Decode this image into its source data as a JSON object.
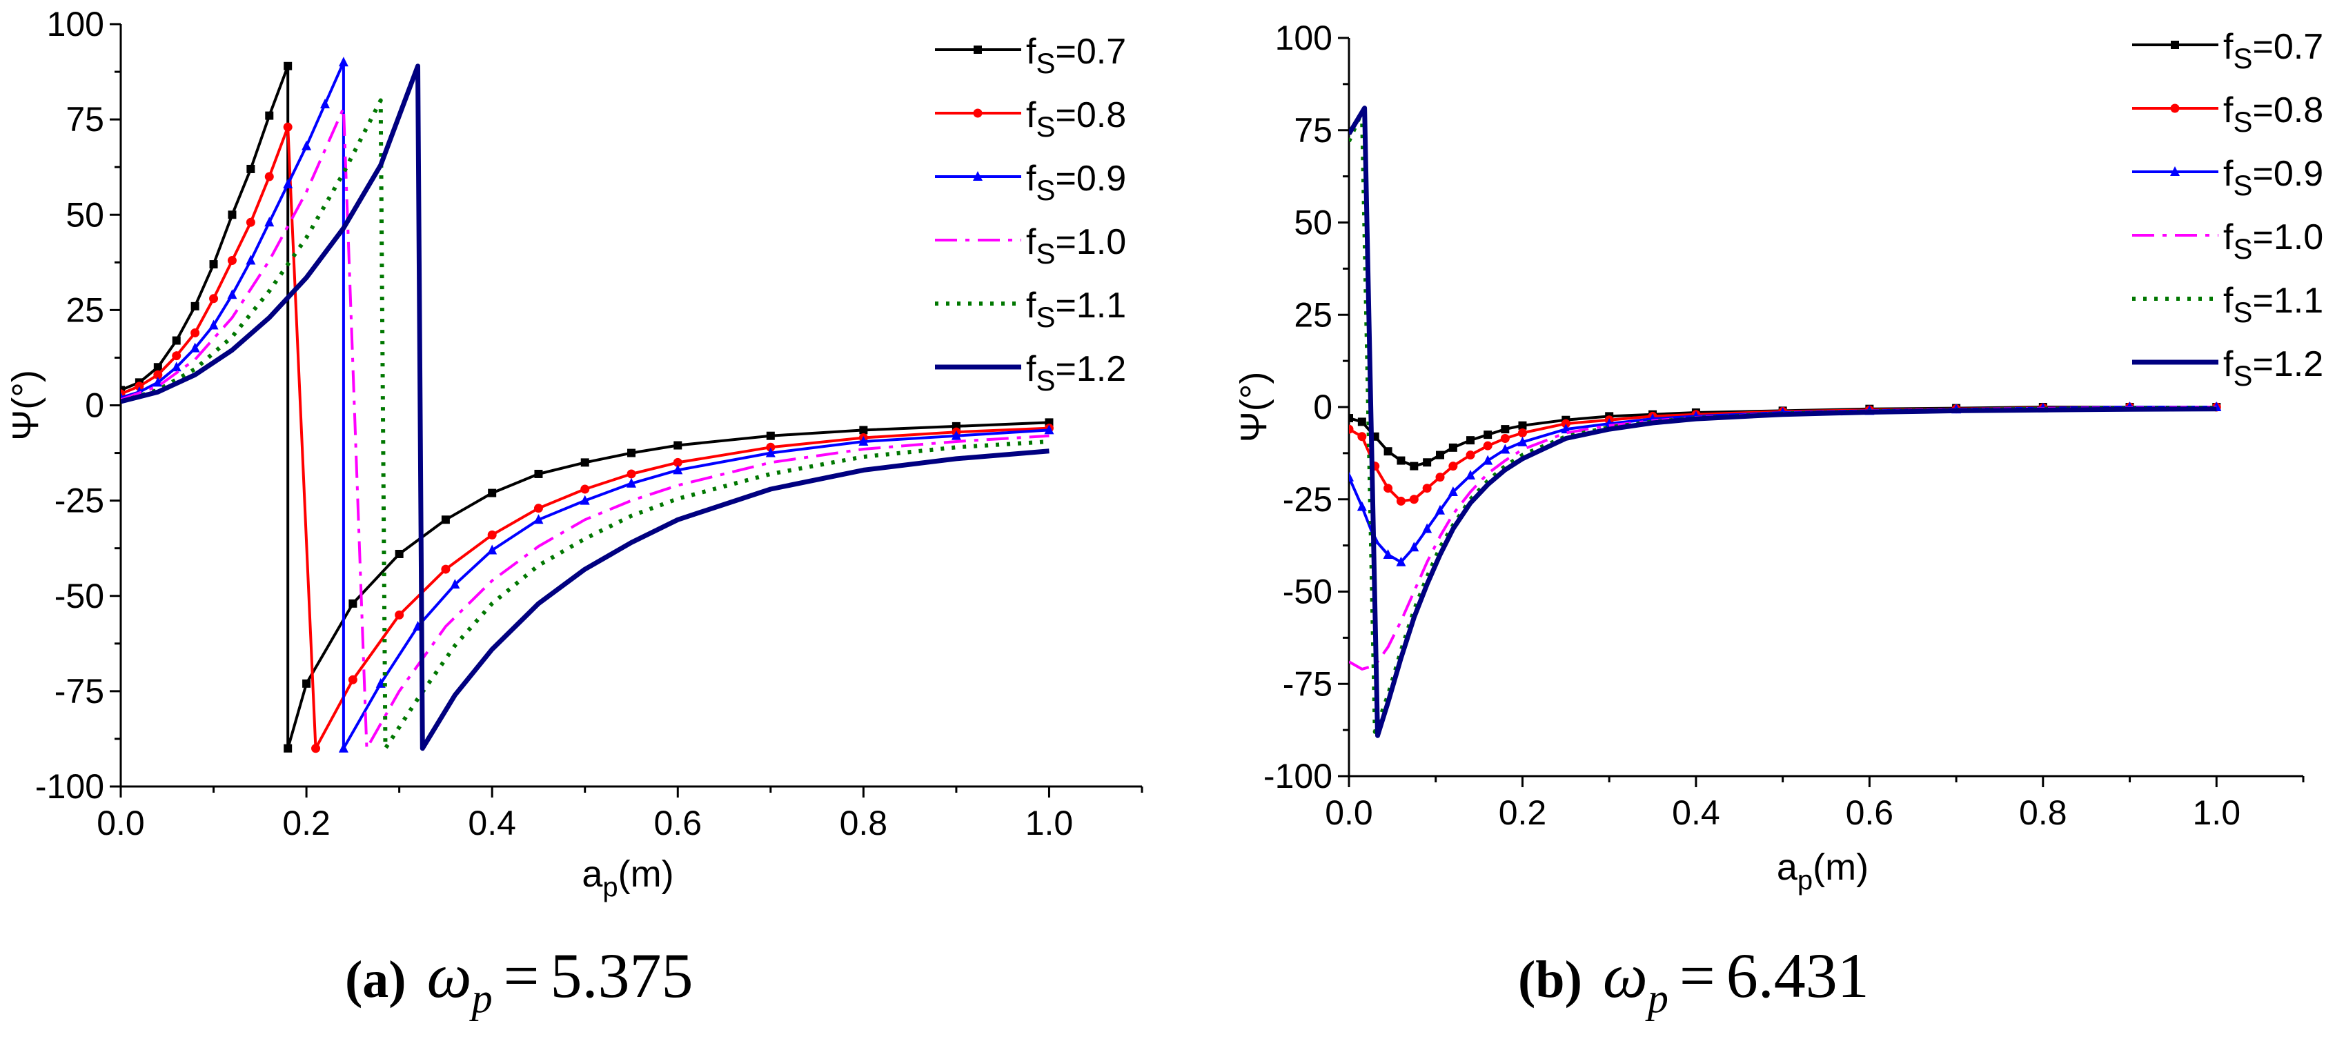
{
  "chart_data": [
    {
      "type": "line",
      "panel_label": "(a)",
      "caption_symbol": "ω",
      "caption_subscript": "p",
      "caption_equals": "=",
      "caption_value": "5.375",
      "xlabel": "a",
      "xlabel_sub": "p",
      "xlabel_unit": "(m)",
      "ylabel": "Ψ(°)",
      "xlim": [
        0,
        1.1
      ],
      "ylim": [
        -100,
        100
      ],
      "xticks": [
        0.0,
        0.2,
        0.4,
        0.6,
        0.8,
        1.0
      ],
      "xtick_labels": [
        "0.0",
        "0.2",
        "0.4",
        "0.6",
        "0.8",
        "1.0"
      ],
      "yticks": [
        -100,
        -75,
        -50,
        -25,
        0,
        25,
        50,
        75,
        100
      ],
      "ytick_labels": [
        "-100",
        "-75",
        "-50",
        "-25",
        "0",
        "25",
        "50",
        "75",
        "100"
      ],
      "legend_position": "top-right",
      "series": [
        {
          "name": "fs=0.7",
          "legend_main": "f",
          "legend_sub": "S",
          "legend_value": "=0.7",
          "color": "#000000",
          "style": "solid",
          "marker": "square",
          "x": [
            0,
            0.02,
            0.04,
            0.06,
            0.08,
            0.1,
            0.12,
            0.14,
            0.16,
            0.18,
            0.18,
            0.2,
            0.25,
            0.3,
            0.35,
            0.4,
            0.45,
            0.5,
            0.55,
            0.6,
            0.7,
            0.8,
            0.9,
            1.0
          ],
          "y": [
            4,
            6,
            10,
            17,
            26,
            37,
            50,
            62,
            76,
            89,
            -90,
            -73,
            -52,
            -39,
            -30,
            -23,
            -18,
            -15,
            -12.5,
            -10.5,
            -8,
            -6.5,
            -5.5,
            -4.5
          ]
        },
        {
          "name": "fs=0.8",
          "legend_main": "f",
          "legend_sub": "S",
          "legend_value": "=0.8",
          "color": "#ff0000",
          "style": "solid",
          "marker": "circle",
          "x": [
            0,
            0.02,
            0.04,
            0.06,
            0.08,
            0.1,
            0.12,
            0.14,
            0.16,
            0.18,
            0.21,
            0.25,
            0.3,
            0.35,
            0.4,
            0.45,
            0.5,
            0.55,
            0.6,
            0.7,
            0.8,
            0.9,
            1.0
          ],
          "y": [
            3,
            5,
            8,
            13,
            19,
            28,
            38,
            48,
            60,
            73,
            -90,
            -72,
            -55,
            -43,
            -34,
            -27,
            -22,
            -18,
            -15,
            -11,
            -8.5,
            -7,
            -6
          ]
        },
        {
          "name": "fs=0.9",
          "legend_main": "f",
          "legend_sub": "S",
          "legend_value": "=0.9",
          "color": "#0000ff",
          "style": "solid",
          "marker": "triangle",
          "x": [
            0,
            0.02,
            0.04,
            0.06,
            0.08,
            0.1,
            0.12,
            0.14,
            0.16,
            0.18,
            0.2,
            0.22,
            0.24,
            0.24,
            0.28,
            0.32,
            0.36,
            0.4,
            0.45,
            0.5,
            0.55,
            0.6,
            0.7,
            0.8,
            0.9,
            1.0
          ],
          "y": [
            2,
            3.5,
            6,
            10,
            15,
            21,
            29,
            38,
            48,
            58,
            68,
            79,
            90,
            -90,
            -73,
            -58,
            -47,
            -38,
            -30,
            -25,
            -20.5,
            -17,
            -12.5,
            -9.5,
            -8,
            -6.5
          ]
        },
        {
          "name": "fs=1.0",
          "legend_main": "f",
          "legend_sub": "S",
          "legend_value": "=1.0",
          "color": "#ff00ff",
          "style": "dashdot",
          "marker": "none",
          "x": [
            0,
            0.04,
            0.08,
            0.12,
            0.16,
            0.2,
            0.24,
            0.265,
            0.3,
            0.35,
            0.4,
            0.45,
            0.5,
            0.55,
            0.6,
            0.7,
            0.8,
            0.9,
            1.0
          ],
          "y": [
            1.5,
            5,
            12,
            23,
            38,
            56,
            78,
            -90,
            -75,
            -58,
            -46,
            -37,
            -30,
            -25,
            -21,
            -15,
            -11.5,
            -9.5,
            -8
          ]
        },
        {
          "name": "fs=1.1",
          "legend_main": "f",
          "legend_sub": "S",
          "legend_value": "=1.1",
          "color": "#007700",
          "style": "dotted",
          "marker": "none",
          "x": [
            0,
            0.04,
            0.08,
            0.12,
            0.16,
            0.2,
            0.24,
            0.28,
            0.285,
            0.32,
            0.36,
            0.4,
            0.45,
            0.5,
            0.55,
            0.6,
            0.7,
            0.8,
            0.9,
            1.0
          ],
          "y": [
            1,
            4,
            9.5,
            18,
            30,
            44,
            61,
            80,
            -90,
            -77,
            -63,
            -52,
            -42,
            -35,
            -29,
            -24.5,
            -18,
            -13.5,
            -11,
            -9.5
          ]
        },
        {
          "name": "fs=1.2",
          "legend_main": "f",
          "legend_sub": "S",
          "legend_value": "=1.2",
          "color": "#000080",
          "style": "solid-thick",
          "marker": "none",
          "x": [
            0,
            0.04,
            0.08,
            0.12,
            0.16,
            0.2,
            0.24,
            0.28,
            0.32,
            0.325,
            0.36,
            0.4,
            0.45,
            0.5,
            0.55,
            0.6,
            0.7,
            0.8,
            0.9,
            1.0
          ],
          "y": [
            1,
            3.5,
            8,
            14.5,
            23,
            33.5,
            46.5,
            63,
            89,
            -90,
            -76,
            -64,
            -52,
            -43,
            -36,
            -30,
            -22,
            -17,
            -14,
            -12
          ]
        }
      ]
    },
    {
      "type": "line",
      "panel_label": "(b)",
      "caption_symbol": "ω",
      "caption_subscript": "p",
      "caption_equals": "=",
      "caption_value": "6.431",
      "xlabel": "a",
      "xlabel_sub": "p",
      "xlabel_unit": "(m)",
      "ylabel": "Ψ(°)",
      "xlim": [
        0,
        1.1
      ],
      "ylim": [
        -100,
        100
      ],
      "xticks": [
        0.0,
        0.2,
        0.4,
        0.6,
        0.8,
        1.0
      ],
      "xtick_labels": [
        "0.0",
        "0.2",
        "0.4",
        "0.6",
        "0.8",
        "1.0"
      ],
      "yticks": [
        -100,
        -75,
        -50,
        -25,
        0,
        25,
        50,
        75,
        100
      ],
      "ytick_labels": [
        "-100",
        "-75",
        "-50",
        "-25",
        "0",
        "25",
        "50",
        "75",
        "100"
      ],
      "legend_position": "top-right",
      "series": [
        {
          "name": "fs=0.7",
          "legend_main": "f",
          "legend_sub": "S",
          "legend_value": "=0.7",
          "color": "#000000",
          "style": "solid",
          "marker": "square",
          "x": [
            0,
            0.015,
            0.03,
            0.045,
            0.06,
            0.075,
            0.09,
            0.105,
            0.12,
            0.14,
            0.16,
            0.18,
            0.2,
            0.25,
            0.3,
            0.35,
            0.4,
            0.5,
            0.6,
            0.7,
            0.8,
            0.9,
            1.0
          ],
          "y": [
            -3,
            -4,
            -8,
            -12,
            -14.5,
            -16,
            -15,
            -13,
            -11,
            -9,
            -7.5,
            -6,
            -5,
            -3.5,
            -2.5,
            -2,
            -1.5,
            -1,
            -0.5,
            -0.3,
            0,
            0,
            0
          ]
        },
        {
          "name": "fs=0.8",
          "legend_main": "f",
          "legend_sub": "S",
          "legend_value": "=0.8",
          "color": "#ff0000",
          "style": "solid",
          "marker": "circle",
          "x": [
            0,
            0.015,
            0.03,
            0.045,
            0.06,
            0.075,
            0.09,
            0.105,
            0.12,
            0.14,
            0.16,
            0.18,
            0.2,
            0.25,
            0.3,
            0.35,
            0.4,
            0.5,
            0.6,
            0.7,
            0.8,
            0.9,
            1.0
          ],
          "y": [
            -6,
            -8,
            -16,
            -22,
            -25.5,
            -25,
            -22,
            -19,
            -16,
            -13,
            -10.5,
            -8.5,
            -7,
            -4.5,
            -3.5,
            -2.5,
            -2,
            -1.2,
            -0.8,
            -0.5,
            -0.2,
            0,
            0
          ]
        },
        {
          "name": "fs=0.9",
          "legend_main": "f",
          "legend_sub": "S",
          "legend_value": "=0.9",
          "color": "#0000ff",
          "style": "solid",
          "marker": "triangle",
          "x": [
            0,
            0.015,
            0.03,
            0.045,
            0.06,
            0.075,
            0.09,
            0.105,
            0.12,
            0.14,
            0.16,
            0.18,
            0.2,
            0.25,
            0.3,
            0.35,
            0.4,
            0.5,
            0.6,
            0.7,
            0.8,
            0.9,
            1.0
          ],
          "y": [
            -19,
            -27,
            -36,
            -40,
            -42,
            -38,
            -33,
            -28,
            -23,
            -18.5,
            -14.5,
            -11.5,
            -9.5,
            -6,
            -4.5,
            -3.2,
            -2.5,
            -1.5,
            -1,
            -0.6,
            -0.3,
            0,
            0
          ]
        },
        {
          "name": "fs=1.0",
          "legend_main": "f",
          "legend_sub": "S",
          "legend_value": "=1.0",
          "color": "#ff00ff",
          "style": "dashdot",
          "marker": "none",
          "x": [
            0,
            0.015,
            0.03,
            0.045,
            0.06,
            0.075,
            0.09,
            0.105,
            0.12,
            0.14,
            0.16,
            0.18,
            0.2,
            0.25,
            0.3,
            0.35,
            0.4,
            0.5,
            0.6,
            0.7,
            0.8,
            0.9,
            1.0
          ],
          "y": [
            -69,
            -71,
            -70,
            -65,
            -58,
            -50,
            -42,
            -35,
            -29,
            -23,
            -18,
            -14.5,
            -11.5,
            -7,
            -5,
            -3.7,
            -2.8,
            -1.7,
            -1.1,
            -0.7,
            -0.4,
            -0.2,
            0
          ]
        },
        {
          "name": "fs=1.1",
          "legend_main": "f",
          "legend_sub": "S",
          "legend_value": "=1.1",
          "color": "#007700",
          "style": "dotted",
          "marker": "none",
          "x": [
            0,
            0.015,
            0.03,
            0.045,
            0.06,
            0.075,
            0.09,
            0.105,
            0.12,
            0.14,
            0.16,
            0.18,
            0.2,
            0.25,
            0.3,
            0.35,
            0.4,
            0.5,
            0.6,
            0.7,
            0.8,
            0.9,
            1.0
          ],
          "y": [
            72,
            80,
            -88,
            -78,
            -66,
            -55,
            -46,
            -38,
            -32,
            -25,
            -20,
            -16,
            -13,
            -8,
            -5.5,
            -4,
            -3,
            -1.8,
            -1.2,
            -0.8,
            -0.5,
            -0.3,
            -0.2
          ]
        },
        {
          "name": "fs=1.2",
          "legend_main": "f",
          "legend_sub": "S",
          "legend_value": "=1.2",
          "color": "#000080",
          "style": "solid-thick",
          "marker": "none",
          "x": [
            0,
            0.018,
            0.033,
            0.045,
            0.06,
            0.075,
            0.09,
            0.105,
            0.12,
            0.14,
            0.16,
            0.18,
            0.2,
            0.25,
            0.3,
            0.35,
            0.4,
            0.5,
            0.6,
            0.7,
            0.8,
            0.9,
            1.0
          ],
          "y": [
            74,
            81,
            -89,
            -80,
            -68,
            -57,
            -48,
            -40,
            -33,
            -26,
            -21,
            -17,
            -14,
            -8.5,
            -6,
            -4.3,
            -3.2,
            -2,
            -1.4,
            -1,
            -0.8,
            -0.6,
            -0.5
          ]
        }
      ]
    }
  ]
}
